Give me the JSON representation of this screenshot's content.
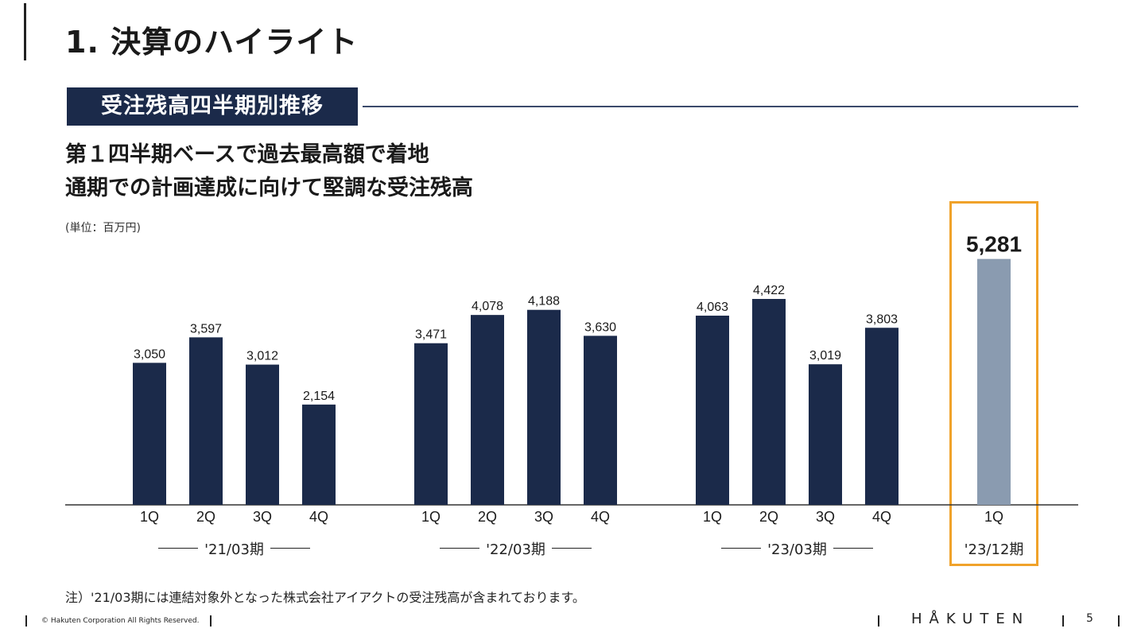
{
  "page": {
    "title": "1. 決算のハイライト",
    "section_label": "受注残高四半期別推移",
    "headline_1": "第１四半期ベースで過去最高額で着地",
    "headline_2": "通期での計画達成に向けて堅調な受注残高",
    "unit": "(単位：百万円)",
    "note": "注）'21/03期には連結対象外となった株式会社アイアクトの受注残高が含まれております。",
    "copyright": "© Hakuten Corporation All Rights Reserved.",
    "brand": "HÅKUTEN",
    "page_number": "5"
  },
  "chart_data": {
    "type": "bar",
    "title": "受注残高四半期別推移",
    "ylabel": "(単位：百万円)",
    "ylim": [
      0,
      5600
    ],
    "groups": [
      {
        "period": "'21/03期",
        "categories": [
          "1Q",
          "2Q",
          "3Q",
          "4Q"
        ],
        "values": [
          3050,
          3597,
          3012,
          2154
        ],
        "labels": [
          "3,050",
          "3,597",
          "3,012",
          "2,154"
        ]
      },
      {
        "period": "'22/03期",
        "categories": [
          "1Q",
          "2Q",
          "3Q",
          "4Q"
        ],
        "values": [
          3471,
          4078,
          4188,
          3630
        ],
        "labels": [
          "3,471",
          "4,078",
          "4,188",
          "3,630"
        ]
      },
      {
        "period": "'23/03期",
        "categories": [
          "1Q",
          "2Q",
          "3Q",
          "4Q"
        ],
        "values": [
          4063,
          4422,
          3019,
          3803
        ],
        "labels": [
          "4,063",
          "4,422",
          "3,019",
          "3,803"
        ]
      },
      {
        "period": "'23/12期",
        "categories": [
          "1Q"
        ],
        "values": [
          5281
        ],
        "labels": [
          "5,281"
        ],
        "highlight": true
      }
    ],
    "colors": {
      "bar": "#1b2a4a",
      "highlight_bar": "#8a9bb0",
      "highlight_border": "#f0a22a"
    }
  }
}
